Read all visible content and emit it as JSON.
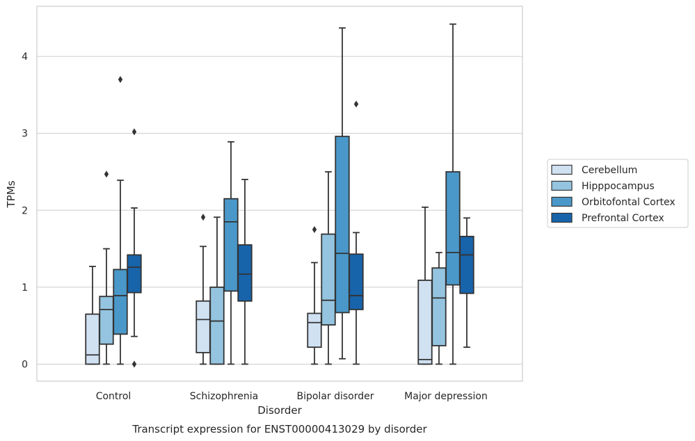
{
  "chart_data": {
    "type": "box",
    "title": "",
    "caption": "Transcript expression for ENST00000413029 by disorder",
    "xlabel": "Disorder",
    "ylabel": "TPMs",
    "ylim": [
      -0.21,
      4.65
    ],
    "yticks": [
      0,
      1,
      2,
      3,
      4
    ],
    "grid": true,
    "legend_position": "right",
    "categories": [
      "Control",
      "Schizophrenia",
      "Bipolar disorder",
      "Major depression"
    ],
    "series": [
      {
        "name": "Cerebellum",
        "color": "#d0e1f2",
        "boxes": [
          {
            "whisker_low": 0,
            "q1": 0,
            "median": 0.12,
            "q3": 0.65,
            "whisker_high": 1.27,
            "outliers": []
          },
          {
            "whisker_low": 0,
            "q1": 0.15,
            "median": 0.58,
            "q3": 0.82,
            "whisker_high": 1.53,
            "outliers": [
              1.91
            ]
          },
          {
            "whisker_low": 0,
            "q1": 0.22,
            "median": 0.54,
            "q3": 0.66,
            "whisker_high": 1.32,
            "outliers": [
              1.75
            ]
          },
          {
            "whisker_low": 0,
            "q1": 0,
            "median": 0.06,
            "q3": 1.09,
            "whisker_high": 2.04,
            "outliers": []
          }
        ]
      },
      {
        "name": "Hipppocampus",
        "color": "#94c4df",
        "boxes": [
          {
            "whisker_low": 0,
            "q1": 0.26,
            "median": 0.71,
            "q3": 0.88,
            "whisker_high": 1.5,
            "outliers": [
              2.47
            ]
          },
          {
            "whisker_low": 0,
            "q1": 0,
            "median": 0.56,
            "q3": 1.0,
            "whisker_high": 1.91,
            "outliers": []
          },
          {
            "whisker_low": 0,
            "q1": 0.51,
            "median": 0.83,
            "q3": 1.69,
            "whisker_high": 2.5,
            "outliers": []
          },
          {
            "whisker_low": 0,
            "q1": 0.24,
            "median": 0.86,
            "q3": 1.25,
            "whisker_high": 1.45,
            "outliers": []
          }
        ]
      },
      {
        "name": "Orbitofontal Cortex",
        "color": "#4a98c9",
        "boxes": [
          {
            "whisker_low": 0,
            "q1": 0.39,
            "median": 0.89,
            "q3": 1.23,
            "whisker_high": 2.39,
            "outliers": [
              3.7
            ]
          },
          {
            "whisker_low": 0,
            "q1": 0.95,
            "median": 1.85,
            "q3": 2.15,
            "whisker_high": 2.89,
            "outliers": []
          },
          {
            "whisker_low": 0.07,
            "q1": 0.67,
            "median": 1.44,
            "q3": 2.96,
            "whisker_high": 4.37,
            "outliers": []
          },
          {
            "whisker_low": 0,
            "q1": 1.03,
            "median": 1.45,
            "q3": 2.5,
            "whisker_high": 4.42,
            "outliers": []
          }
        ]
      },
      {
        "name": "Prefrontal Cortex",
        "color": "#1764ab",
        "boxes": [
          {
            "whisker_low": 0.36,
            "q1": 0.93,
            "median": 1.26,
            "q3": 1.42,
            "whisker_high": 2.03,
            "outliers": [
              3.02,
              0
            ]
          },
          {
            "whisker_low": 0,
            "q1": 0.82,
            "median": 1.17,
            "q3": 1.55,
            "whisker_high": 2.4,
            "outliers": []
          },
          {
            "whisker_low": 0,
            "q1": 0.71,
            "median": 0.89,
            "q3": 1.43,
            "whisker_high": 1.71,
            "outliers": [
              3.38
            ]
          },
          {
            "whisker_low": 0.22,
            "q1": 0.92,
            "median": 1.42,
            "q3": 1.66,
            "whisker_high": 1.9,
            "outliers": []
          }
        ]
      }
    ]
  }
}
